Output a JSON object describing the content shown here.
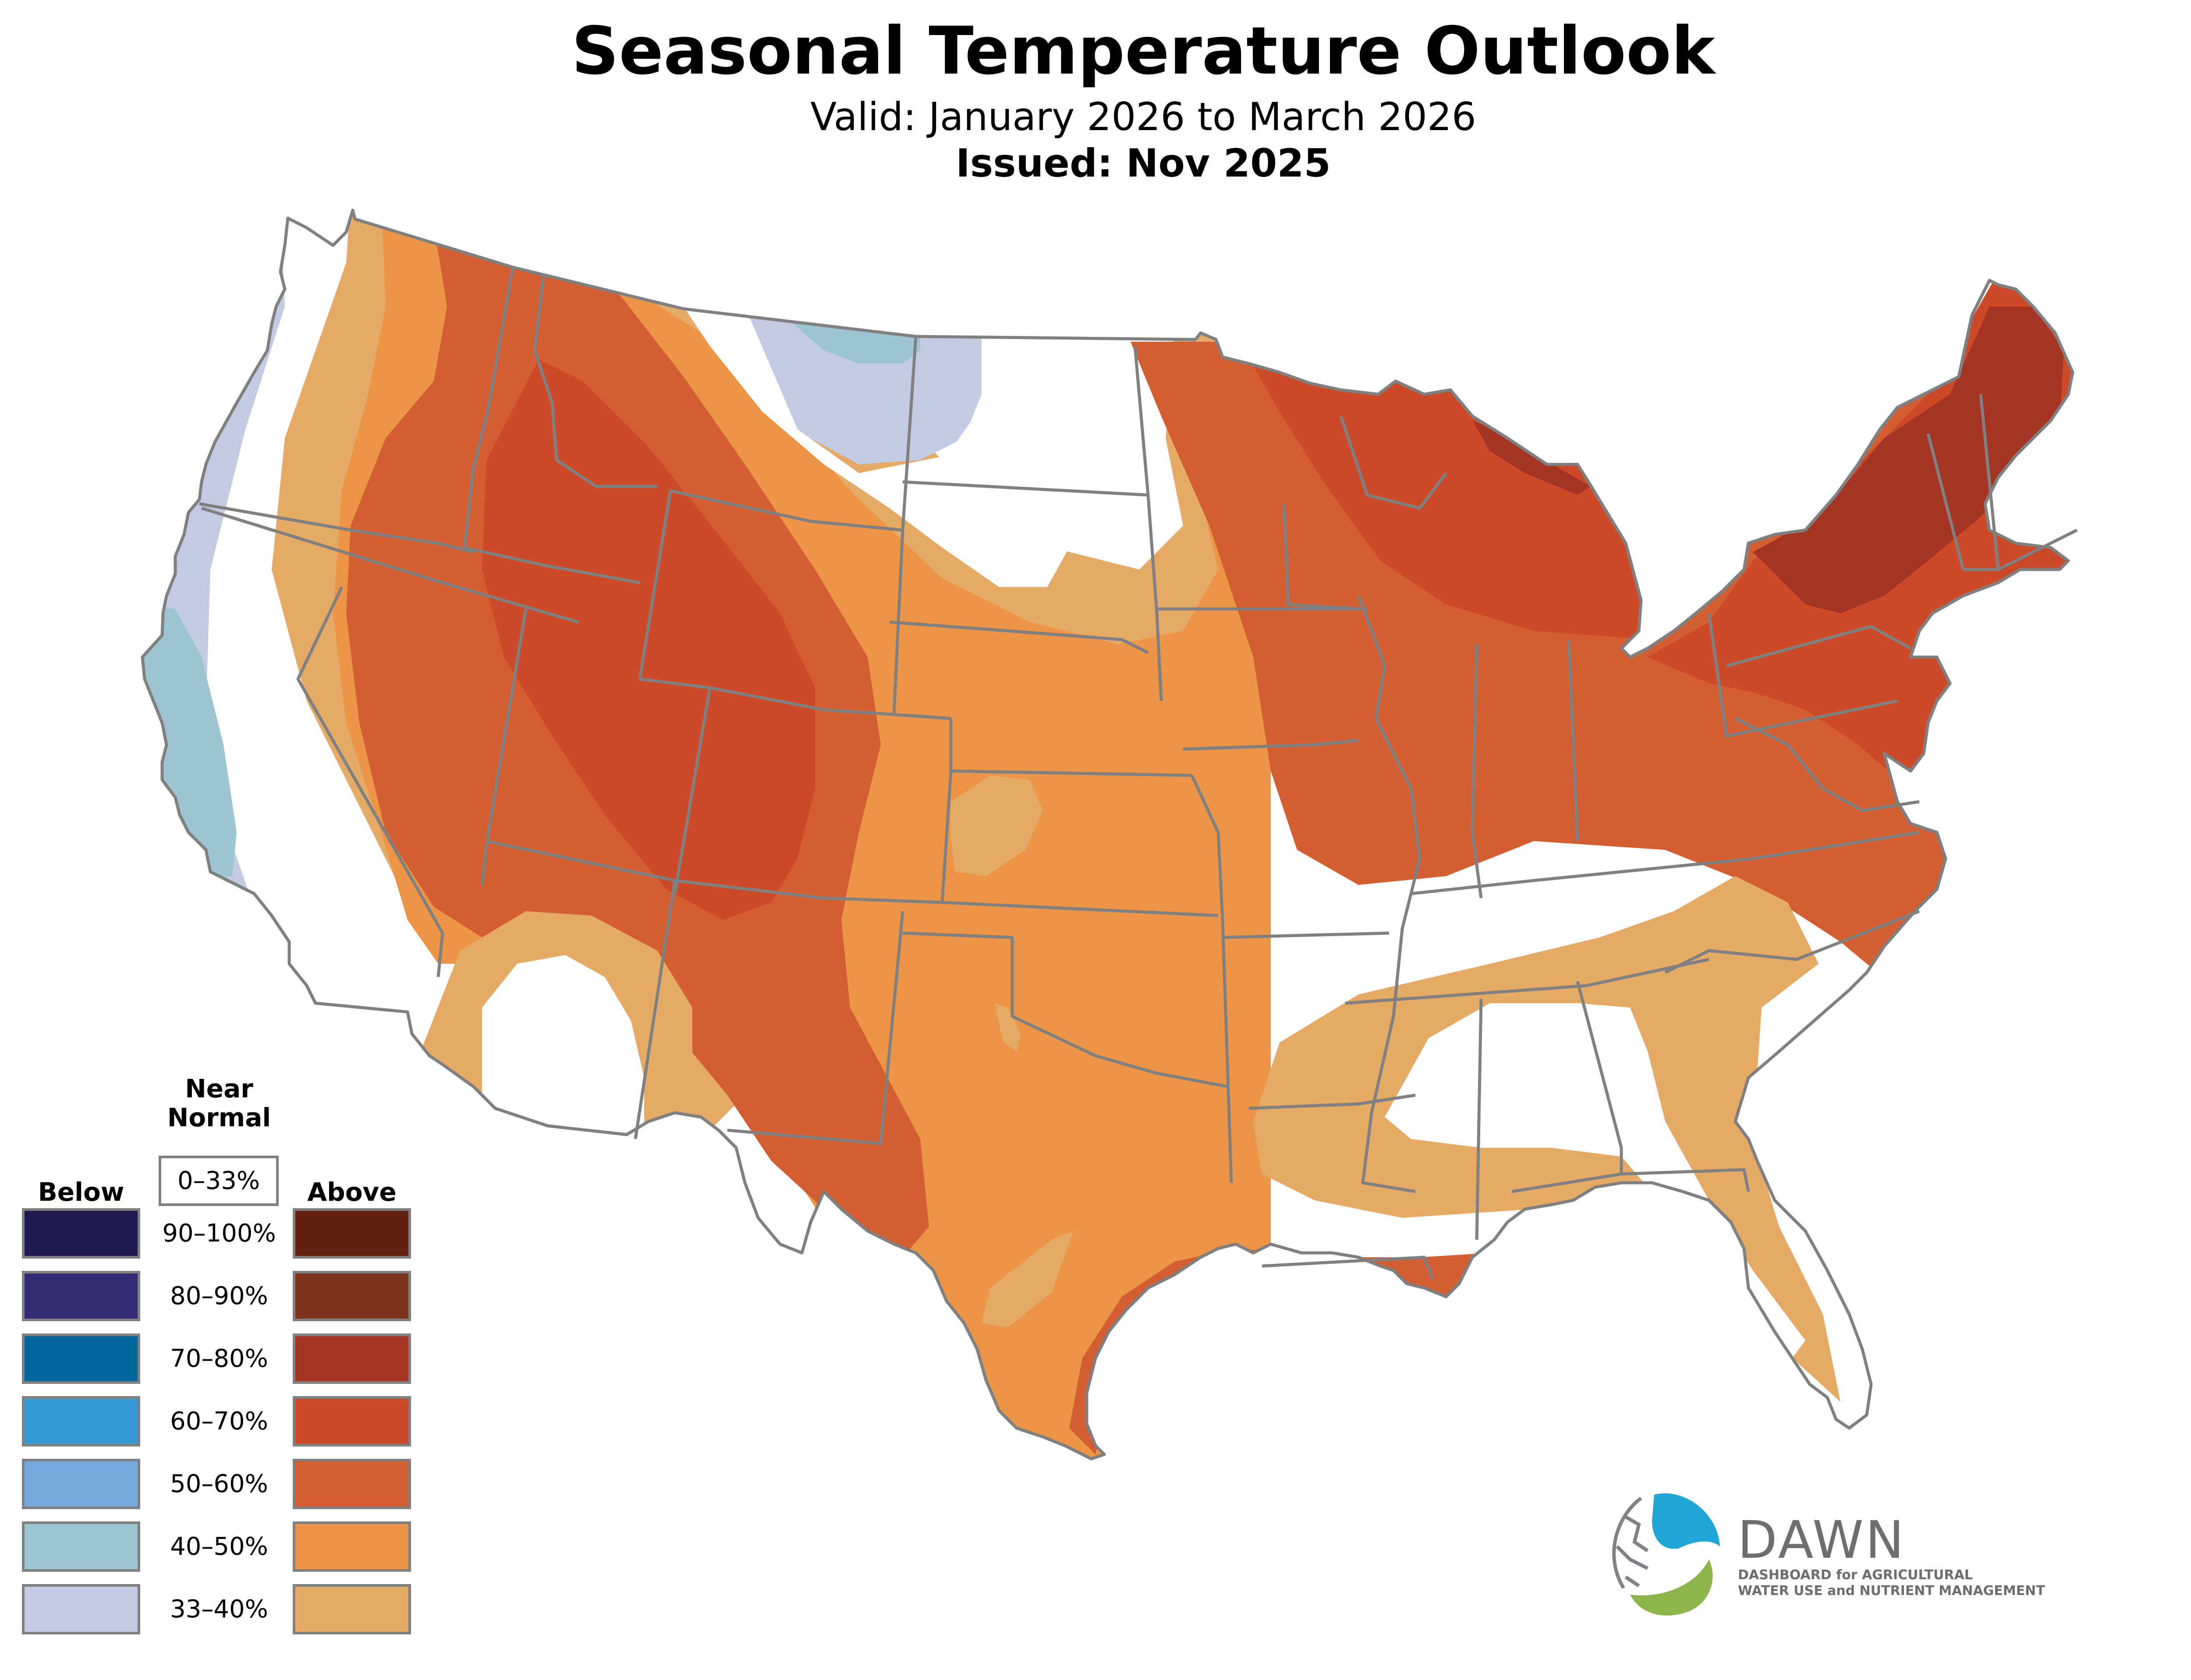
{
  "header": {
    "title": "Seasonal Temperature Outlook",
    "valid": "Valid: January 2026 to March 2026",
    "issued": "Issued: Nov 2025"
  },
  "legend": {
    "below_label": "Below",
    "near_normal_label_line1": "Near",
    "near_normal_label_line2": "Normal",
    "near_normal_range": "0–33%",
    "above_label": "Above",
    "rows": [
      {
        "range": "90–100%",
        "below_color": "#1f1a4f",
        "above_color": "#632210"
      },
      {
        "range": "80–90%",
        "below_color": "#332b73",
        "above_color": "#7e341c"
      },
      {
        "range": "70–80%",
        "below_color": "#00679c",
        "above_color": "#a63424"
      },
      {
        "range": "60–70%",
        "below_color": "#3399d5",
        "above_color": "#cc4a27"
      },
      {
        "range": "50–60%",
        "below_color": "#76aadb",
        "above_color": "#d35e32"
      },
      {
        "range": "40–50%",
        "below_color": "#9cc5d1",
        "above_color": "#ec9546"
      },
      {
        "range": "33–40%",
        "below_color": "#c3cbe3",
        "above_color": "#e6aa67"
      }
    ]
  },
  "logo": {
    "name": "DAWN",
    "tagline_line1": "DASHBOARD for AGRICULTURAL",
    "tagline_line2": "WATER USE and NUTRIENT MANAGEMENT",
    "colors": {
      "water": "#1fa6d4",
      "leaf": "#8db54b",
      "circuit": "#808285",
      "text": "#6d6e70"
    }
  },
  "map": {
    "border_color": "#808080",
    "near_normal_color": "#ffffff"
  }
}
